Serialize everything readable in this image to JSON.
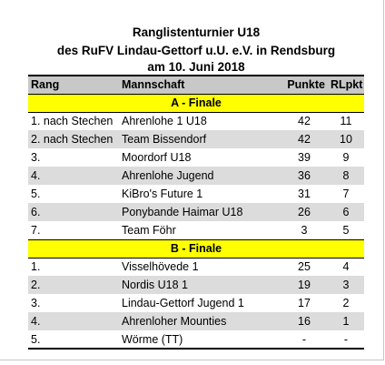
{
  "title": {
    "line1": "Ranglistenturnier U18",
    "line2": "des RuFV Lindau-Gettorf u.U. e.V. in Rendsburg",
    "line3": "am 10. Juni 2018"
  },
  "table": {
    "headers": {
      "rank": "Rang",
      "team": "Mannschaft",
      "points": "Punkte",
      "rlpkt": "RLpkt"
    },
    "sections": [
      {
        "label": "A - Finale",
        "rows": [
          {
            "rank": "1. nach Stechen",
            "team": "Ahrenlohe 1 U18",
            "points": "42",
            "rlpkt": "11"
          },
          {
            "rank": "2. nach Stechen",
            "team": "Team Bissendorf",
            "points": "42",
            "rlpkt": "10"
          },
          {
            "rank": "3.",
            "team": "Moordorf U18",
            "points": "39",
            "rlpkt": "9"
          },
          {
            "rank": "4.",
            "team": "Ahrenlohe Jugend",
            "points": "36",
            "rlpkt": "8"
          },
          {
            "rank": "5.",
            "team": "KiBro's Future 1",
            "points": "31",
            "rlpkt": "7"
          },
          {
            "rank": "6.",
            "team": "Ponybande Haimar U18",
            "points": "26",
            "rlpkt": "6"
          },
          {
            "rank": "7.",
            "team": "Team Föhr",
            "points": "3",
            "rlpkt": "5"
          }
        ]
      },
      {
        "label": "B - Finale",
        "rows": [
          {
            "rank": "1.",
            "team": "Visselhövede 1",
            "points": "25",
            "rlpkt": "4"
          },
          {
            "rank": "2.",
            "team": "Nordis U18 1",
            "points": "19",
            "rlpkt": "3"
          },
          {
            "rank": "3.",
            "team": "Lindau-Gettorf Jugend 1",
            "points": "17",
            "rlpkt": "2"
          },
          {
            "rank": "4.",
            "team": "Ahrenloher Mounties",
            "points": "16",
            "rlpkt": "1"
          },
          {
            "rank": "5.",
            "team": "Wörme (TT)",
            "points": "-",
            "rlpkt": "-"
          }
        ]
      }
    ]
  }
}
